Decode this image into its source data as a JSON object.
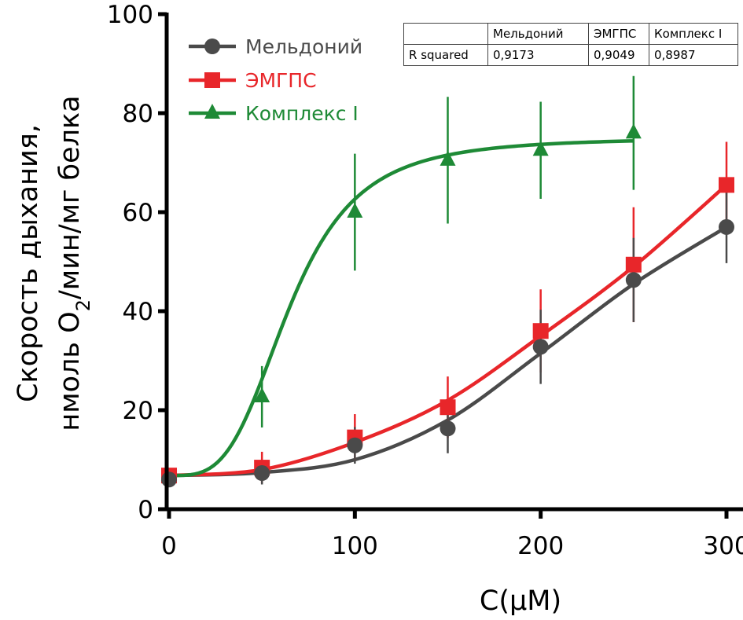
{
  "chart_data": {
    "type": "line",
    "title": "",
    "xlabel": "C(μM)",
    "ylabel_line1": "Скорость дыхания,",
    "ylabel_line2_prefix": "нмоль O",
    "ylabel_line2_sub": "2",
    "ylabel_line2_suffix": "/мин/мг белка",
    "xlim": [
      0,
      300
    ],
    "ylim": [
      0,
      100
    ],
    "xticks": [
      0,
      100,
      200,
      300
    ],
    "xtick_labels": [
      "0",
      "100",
      "200",
      "300"
    ],
    "yticks": [
      0,
      20,
      40,
      60,
      80,
      100
    ],
    "ytick_labels": [
      "0",
      "20",
      "40",
      "60",
      "80",
      "100"
    ],
    "grid": false,
    "legend_position": "top-left",
    "x": [
      0,
      50,
      100,
      150,
      200,
      250,
      300
    ],
    "series": [
      {
        "name": "Мельдоний",
        "color": "#4a4a4a",
        "marker": "circle",
        "x": [
          0,
          50,
          100,
          150,
          200,
          250,
          300
        ],
        "values": [
          6.0,
          7.3,
          12.9,
          16.3,
          32.8,
          46.3,
          57.0
        ],
        "error": [
          1.5,
          2.3,
          3.7,
          5.0,
          7.5,
          8.5,
          7.3
        ],
        "fit": [
          6.8,
          7.4,
          10.0,
          18.0,
          31.5,
          45.5,
          57.0
        ]
      },
      {
        "name": "ЭМГПС",
        "color": "#e8262a",
        "marker": "square",
        "x": [
          0,
          50,
          100,
          150,
          200,
          250,
          300
        ],
        "values": [
          6.8,
          8.4,
          14.5,
          20.6,
          36.0,
          49.4,
          65.5
        ],
        "error": [
          1.5,
          3.2,
          4.7,
          6.2,
          8.4,
          11.6,
          8.7
        ],
        "fit": [
          6.8,
          8.0,
          13.5,
          22.0,
          35.0,
          49.0,
          65.5
        ]
      },
      {
        "name": "Комплекс I",
        "color": "#1e8a36",
        "marker": "triangle",
        "x": [
          0,
          50,
          100,
          150,
          200,
          250
        ],
        "values": [
          6.5,
          22.7,
          60.0,
          70.5,
          72.5,
          76.0
        ],
        "error": [
          1.0,
          6.2,
          11.8,
          12.8,
          9.8,
          11.5
        ],
        "fit_params": {
          "bottom": 6.8,
          "top": 75.0,
          "x50": 65,
          "hill": 3.5
        }
      }
    ],
    "annotation_table": {
      "header": [
        "",
        "Мельдоний",
        "ЭМГПС",
        "Комплекс I"
      ],
      "rows": [
        [
          "R squared",
          "0,9173",
          "0,9049",
          "0,8987"
        ]
      ]
    }
  }
}
